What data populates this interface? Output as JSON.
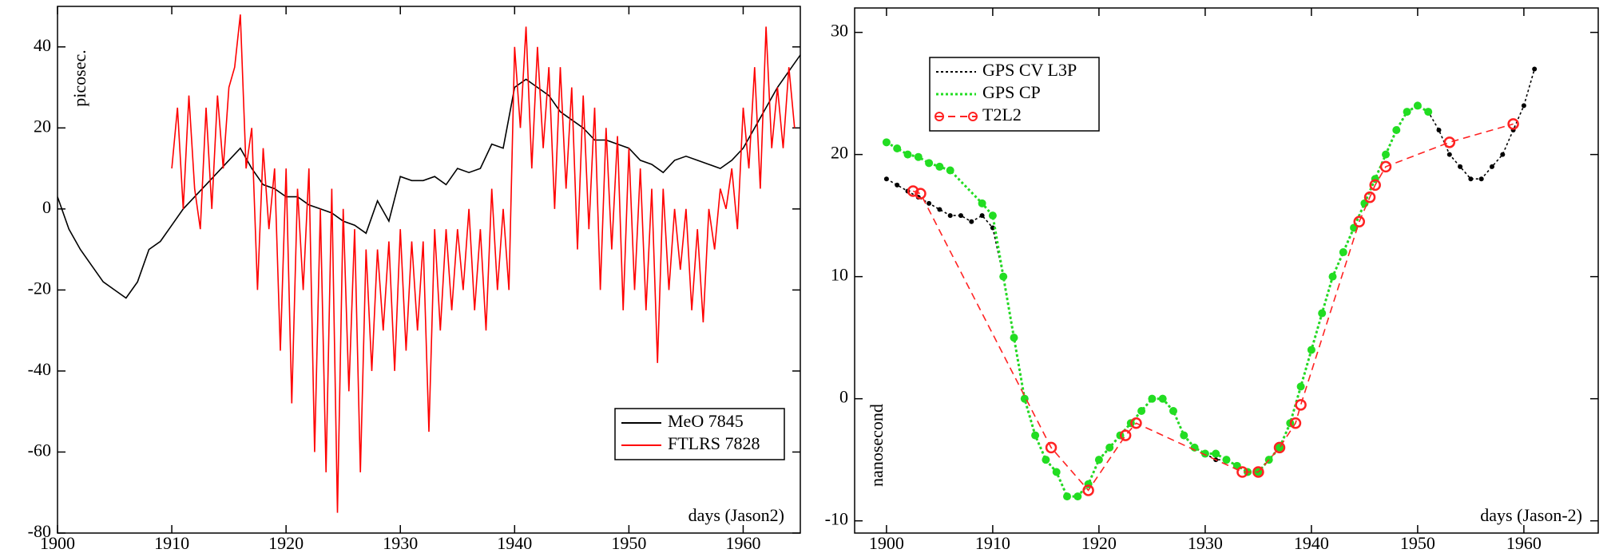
{
  "chart_data": [
    {
      "type": "line",
      "xlim": [
        1900,
        1965
      ],
      "ylim": [
        -80,
        50
      ],
      "xticks": [
        1900,
        1910,
        1920,
        1930,
        1940,
        1950,
        1960
      ],
      "yticks": [
        -80,
        -60,
        -40,
        -20,
        0,
        20,
        40
      ],
      "xlabel": "days (Jason2)",
      "ylabel": "picosec.",
      "legend": "lower right",
      "series": [
        {
          "name": "MeO 7845",
          "color": "#000000",
          "line": "solid",
          "marker": "none",
          "x": [
            1900,
            1901,
            1902,
            1903,
            1904,
            1905,
            1906,
            1907,
            1908,
            1909,
            1910,
            1911,
            1912,
            1913,
            1914,
            1915,
            1916,
            1917,
            1918,
            1919,
            1920,
            1921,
            1922,
            1923,
            1924,
            1925,
            1926,
            1927,
            1928,
            1929,
            1930,
            1931,
            1932,
            1933,
            1934,
            1935,
            1936,
            1937,
            1938,
            1939,
            1940,
            1941,
            1942,
            1943,
            1944,
            1945,
            1946,
            1947,
            1948,
            1949,
            1950,
            1951,
            1952,
            1953,
            1954,
            1955,
            1956,
            1957,
            1958,
            1959,
            1960,
            1961,
            1962,
            1963,
            1964,
            1965
          ],
          "values": [
            3,
            -5,
            -10,
            -14,
            -18,
            -20,
            -22,
            -18,
            -10,
            -8,
            -4,
            0,
            3,
            6,
            9,
            12,
            15,
            10,
            6,
            5,
            3,
            3,
            1,
            0,
            -1,
            -3,
            -4,
            -6,
            2,
            -3,
            8,
            7,
            7,
            8,
            6,
            10,
            9,
            10,
            16,
            15,
            30,
            32,
            30,
            28,
            24,
            22,
            20,
            17,
            17,
            16,
            15,
            12,
            11,
            9,
            12,
            13,
            12,
            11,
            10,
            12,
            15,
            20,
            25,
            30,
            34,
            38
          ]
        },
        {
          "name": "FTLRS 7828",
          "color": "#ff0000",
          "line": "solid",
          "marker": "none",
          "x": [
            1910,
            1910.5,
            1911,
            1911.5,
            1912,
            1912.5,
            1913,
            1913.5,
            1914,
            1914.5,
            1915,
            1915.5,
            1916,
            1916.5,
            1917,
            1917.5,
            1918,
            1918.5,
            1919,
            1919.5,
            1920,
            1920.5,
            1921,
            1921.5,
            1922,
            1922.5,
            1923,
            1923.5,
            1924,
            1924.5,
            1925,
            1925.5,
            1926,
            1926.5,
            1927,
            1927.5,
            1928,
            1928.5,
            1929,
            1929.5,
            1930,
            1930.5,
            1931,
            1931.5,
            1932,
            1932.5,
            1933,
            1933.5,
            1934,
            1934.5,
            1935,
            1935.5,
            1936,
            1936.5,
            1937,
            1937.5,
            1938,
            1938.5,
            1939,
            1939.5,
            1940,
            1940.5,
            1941,
            1941.5,
            1942,
            1942.5,
            1943,
            1943.5,
            1944,
            1944.5,
            1945,
            1945.5,
            1946,
            1946.5,
            1947,
            1947.5,
            1948,
            1948.5,
            1949,
            1949.5,
            1950,
            1950.5,
            1951,
            1951.5,
            1952,
            1952.5,
            1953,
            1953.5,
            1954,
            1954.5,
            1955,
            1955.5,
            1956,
            1956.5,
            1957,
            1957.5,
            1958,
            1958.5,
            1959,
            1959.5,
            1960,
            1960.5,
            1961,
            1961.5,
            1962,
            1962.5,
            1963,
            1963.5,
            1964,
            1964.5
          ],
          "values": [
            10,
            25,
            0,
            28,
            5,
            -5,
            25,
            0,
            28,
            10,
            30,
            35,
            48,
            10,
            20,
            -20,
            15,
            -5,
            10,
            -35,
            10,
            -48,
            5,
            -20,
            10,
            -60,
            0,
            -65,
            5,
            -75,
            0,
            -45,
            -5,
            -65,
            -10,
            -40,
            -10,
            -30,
            -8,
            -40,
            -5,
            -35,
            -8,
            -30,
            -8,
            -55,
            -5,
            -30,
            -5,
            -25,
            -5,
            -20,
            0,
            -25,
            -5,
            -30,
            5,
            -20,
            0,
            -20,
            40,
            20,
            45,
            10,
            40,
            15,
            35,
            0,
            35,
            5,
            30,
            -10,
            28,
            -5,
            25,
            -20,
            20,
            -10,
            18,
            -25,
            15,
            -20,
            10,
            -25,
            5,
            -38,
            5,
            -20,
            0,
            -15,
            0,
            -25,
            -5,
            -28,
            0,
            -10,
            5,
            0,
            10,
            -5,
            25,
            10,
            35,
            5,
            45,
            15,
            30,
            15,
            35,
            20
          ]
        }
      ]
    },
    {
      "type": "line",
      "xlim": [
        1897,
        1967
      ],
      "ylim": [
        -11,
        32
      ],
      "xticks": [
        1900,
        1910,
        1920,
        1930,
        1940,
        1950,
        1960
      ],
      "yticks": [
        -10,
        0,
        10,
        20,
        30
      ],
      "xlabel": "days (Jason-2)",
      "ylabel": "nanosecond",
      "legend": "upper left",
      "series": [
        {
          "name": "GPS CV L3P",
          "color": "#000000",
          "line": "dotted",
          "marker": "dot",
          "x": [
            1900,
            1901,
            1902,
            1903,
            1904,
            1905,
            1906,
            1907,
            1908,
            1909,
            1910,
            1911,
            1912,
            1913,
            1914,
            1915,
            1916,
            1917,
            1918,
            1919,
            1920,
            1921,
            1922,
            1923,
            1924,
            1925,
            1926,
            1927,
            1928,
            1929,
            1930,
            1931,
            1932,
            1933,
            1934,
            1935,
            1936,
            1937,
            1938,
            1939,
            1940,
            1941,
            1942,
            1943,
            1944,
            1945,
            1946,
            1947,
            1948,
            1949,
            1950,
            1951,
            1952,
            1953,
            1954,
            1955,
            1956,
            1957,
            1958,
            1959,
            1960,
            1961
          ],
          "values": [
            18,
            17.5,
            17,
            16.5,
            16,
            15.5,
            15,
            15,
            14.5,
            15,
            14,
            10,
            5,
            0,
            -3,
            -5,
            -6,
            -8,
            -8,
            -7,
            -5,
            -4,
            -3,
            -2,
            -1,
            0,
            0,
            -1,
            -3,
            -4,
            -4.5,
            -5,
            -5,
            -5.5,
            -6,
            -6,
            -5,
            -4,
            -2,
            1,
            4,
            7,
            10,
            12,
            14,
            16,
            18,
            20,
            22,
            23.5,
            24,
            23.5,
            22,
            20,
            19,
            18,
            18,
            19,
            20,
            22,
            24,
            27
          ]
        },
        {
          "name": "GPS CP",
          "color": "#22dd22",
          "line": "dotted",
          "marker": "thick",
          "x": [
            1900,
            1901,
            1902,
            1903,
            1904,
            1905,
            1906,
            1909,
            1910,
            1911,
            1912,
            1913,
            1914,
            1915,
            1916,
            1917,
            1918,
            1919,
            1920,
            1921,
            1922,
            1923,
            1924,
            1925,
            1926,
            1927,
            1928,
            1929,
            1930,
            1931,
            1932,
            1933,
            1934,
            1935,
            1936,
            1937,
            1938,
            1939,
            1940,
            1941,
            1942,
            1943,
            1944,
            1945,
            1946,
            1947,
            1948,
            1949,
            1950,
            1951
          ],
          "values": [
            21,
            20.5,
            20,
            19.8,
            19.3,
            19,
            18.7,
            16,
            15,
            10,
            5,
            0,
            -3,
            -5,
            -6,
            -8,
            -8,
            -7,
            -5,
            -4,
            -3,
            -2,
            -1,
            0,
            0,
            -1,
            -3,
            -4,
            -4.5,
            -4.5,
            -5,
            -5.5,
            -6,
            -6,
            -5,
            -4,
            -2,
            1,
            4,
            7,
            10,
            12,
            14,
            16,
            18,
            20,
            22,
            23.5,
            24,
            23.5
          ]
        },
        {
          "name": "T2L2",
          "color": "#ff2222",
          "line": "dashed",
          "marker": "circle",
          "x": [
            1902.5,
            1903.2,
            1915.5,
            1919,
            1922.5,
            1923.5,
            1933.5,
            1935,
            1937,
            1938.5,
            1939,
            1944.5,
            1945.5,
            1946,
            1947,
            1953,
            1959
          ],
          "values": [
            17,
            16.8,
            -4,
            -7.5,
            -3,
            -2,
            -6,
            -6,
            -4,
            -2,
            -0.5,
            14.5,
            16.5,
            17.5,
            19,
            21,
            22.5
          ]
        }
      ]
    }
  ]
}
